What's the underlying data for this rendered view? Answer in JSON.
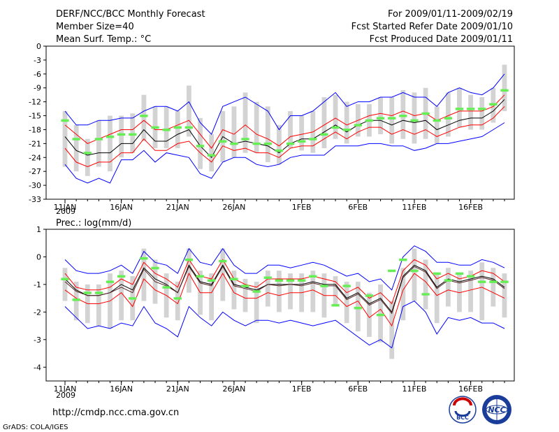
{
  "header": {
    "title": "DERF/NCC/BCC Monthly Forecast",
    "member_size": "Member Size=40",
    "for_period": "For 2009/01/11-2009/02/19",
    "fcst_started": "Fcst Started Refer Date 2009/01/10",
    "fcst_produced": "Fcst Produced Date 2009/01/11"
  },
  "footer": {
    "url": "http://cmdp.ncc.cma.gov.cn",
    "credit": "GrADS: COLA/IGES",
    "logo_bcc": "BCC",
    "logo_ncc": "NCC"
  },
  "colors": {
    "envelope": "#0000ff",
    "spread": "#ff0000",
    "mean": "#000000",
    "observed": "#66ee55",
    "box": "#d3d3d3"
  },
  "chart_data": [
    {
      "type": "line",
      "ylabel": "Mean Surf. Temp.: °C",
      "ylim": [
        -33,
        0
      ],
      "yticks": [
        0,
        -3,
        -6,
        -9,
        -12,
        -15,
        -18,
        -21,
        -24,
        -27,
        -30,
        -33
      ],
      "xlim": [
        0,
        39
      ],
      "xticks": [
        {
          "x": 0,
          "label": "11JAN"
        },
        {
          "x": 5,
          "label": "16JAN"
        },
        {
          "x": 10,
          "label": "21JAN"
        },
        {
          "x": 15,
          "label": "26JAN"
        },
        {
          "x": 21,
          "label": "1FEB"
        },
        {
          "x": 26,
          "label": "6FEB"
        },
        {
          "x": 31,
          "label": "11FEB"
        },
        {
          "x": 36,
          "label": "16FEB"
        }
      ],
      "year_label": "2009",
      "series": [
        {
          "name": "ensemble max",
          "color": "#0000ff",
          "values": [
            -14,
            -17,
            -17,
            -16,
            -16,
            -15.5,
            -15.5,
            -14,
            -13,
            -13,
            -14,
            -12,
            -16.5,
            -19,
            -13,
            -12,
            -11,
            -12.5,
            -14,
            -18,
            -15,
            -15,
            -14,
            -12,
            -10,
            -13,
            -12,
            -12,
            -11,
            -11,
            -10,
            -11,
            -11,
            -13,
            -10,
            -9,
            -10,
            -10.5,
            -9,
            -6
          ]
        },
        {
          "name": "ensemble upper",
          "color": "#ff0000",
          "values": [
            -17,
            -19,
            -21,
            -20,
            -19,
            -18,
            -18,
            -16,
            -18,
            -18,
            -17,
            -16,
            -19,
            -22,
            -18,
            -19,
            -17,
            -19,
            -20,
            -21.5,
            -19.5,
            -19,
            -18.5,
            -17,
            -15.5,
            -17,
            -16,
            -15,
            -14.5,
            -15,
            -14,
            -15,
            -14.5,
            -16,
            -15,
            -14,
            -14,
            -14,
            -13,
            -10.5
          ]
        },
        {
          "name": "ensemble mean",
          "color": "#000000",
          "values": [
            -19.5,
            -22.5,
            -23.5,
            -23,
            -23,
            -21,
            -21,
            -18,
            -20.5,
            -20.5,
            -19,
            -18,
            -21.5,
            -24,
            -19.5,
            -21,
            -20.5,
            -21,
            -21.5,
            -23,
            -21,
            -20,
            -20,
            -18.5,
            -17,
            -18.5,
            -17,
            -16,
            -16,
            -17,
            -16,
            -16.5,
            -16,
            -18,
            -17,
            -16,
            -15.5,
            -15.5,
            -14,
            -11.5
          ]
        },
        {
          "name": "ensemble lower",
          "color": "#ff0000",
          "values": [
            -22,
            -25,
            -26,
            -25,
            -25,
            -23,
            -23,
            -20,
            -22.5,
            -22.5,
            -21,
            -20.5,
            -23,
            -25,
            -21.5,
            -22.5,
            -22,
            -23,
            -23,
            -24,
            -22,
            -21.5,
            -21.5,
            -20,
            -18.5,
            -20,
            -18.5,
            -17.5,
            -17.5,
            -19,
            -18,
            -19,
            -18,
            -19.5,
            -18.5,
            -17.5,
            -17,
            -17,
            -15.5,
            -13
          ]
        },
        {
          "name": "ensemble min",
          "color": "#0000ff",
          "values": [
            -25.5,
            -28.5,
            -29.5,
            -28.5,
            -29.5,
            -24.5,
            -24.5,
            -22.5,
            -25,
            -23,
            -23.5,
            -24,
            -27.5,
            -28.5,
            -25,
            -24,
            -24,
            -25.5,
            -26,
            -25.5,
            -24,
            -23.5,
            -23.5,
            -23.5,
            -21.5,
            -21.5,
            -21.5,
            -21,
            -21,
            -21.5,
            -21.5,
            -22.5,
            -22,
            -21,
            -21,
            -20.5,
            -20,
            -19.5,
            -18,
            -16.5
          ]
        }
      ],
      "boxes": [
        [
          -14,
          -26
        ],
        [
          -17,
          -27
        ],
        [
          -20,
          -28
        ],
        [
          -16,
          -26
        ],
        [
          -15,
          -27
        ],
        [
          -15,
          -24
        ],
        [
          -14.5,
          -23
        ],
        [
          -10.5,
          -20.5
        ],
        [
          -13,
          -22
        ],
        [
          -13,
          -22
        ],
        [
          -14,
          -22
        ],
        [
          -8.5,
          -19.5
        ],
        [
          -15.5,
          -26.5
        ],
        [
          -19,
          -27
        ],
        [
          -14,
          -25
        ],
        [
          -13,
          -24
        ],
        [
          -10,
          -23
        ],
        [
          -12,
          -23
        ],
        [
          -13,
          -25
        ],
        [
          -17,
          -25.5
        ],
        [
          -14,
          -22
        ],
        [
          -15,
          -22.5
        ],
        [
          -14,
          -23
        ],
        [
          -11,
          -22
        ],
        [
          -10.5,
          -20
        ],
        [
          -12,
          -21
        ],
        [
          -12.5,
          -19.5
        ],
        [
          -12.5,
          -19.5
        ],
        [
          -11,
          -19
        ],
        [
          -11,
          -21
        ],
        [
          -9.5,
          -20
        ],
        [
          -10,
          -21
        ],
        [
          -9,
          -20
        ],
        [
          -13,
          -21
        ],
        [
          -10,
          -19.5
        ],
        [
          -9,
          -17.5
        ],
        [
          -10.5,
          -18
        ],
        [
          -11,
          -18
        ],
        [
          -9,
          -16.5
        ],
        [
          -4,
          -14
        ]
      ],
      "observed": [
        -16,
        -20,
        -23,
        -20,
        -19.5,
        -19,
        -19,
        -15,
        -17.5,
        -18,
        -17.5,
        -17.5,
        -21.5,
        -23.5,
        -20.5,
        -21,
        -20,
        -21,
        -21,
        -22.5,
        -21,
        -20.5,
        -20,
        -19,
        -17.5,
        -18,
        -17,
        -16,
        -15.5,
        -15.5,
        -15,
        -16,
        -14.5,
        -16,
        -15.5,
        -13.5,
        -13.5,
        -13.5,
        -12.5,
        -9.5
      ]
    },
    {
      "type": "line",
      "ylabel": "Prec.: log(mm/d)",
      "ylim": [
        -4.5,
        1
      ],
      "yticks": [
        1,
        0,
        -1,
        -2,
        -3,
        -4
      ],
      "xlim": [
        0,
        39
      ],
      "xticks": [
        {
          "x": 0,
          "label": "11JAN"
        },
        {
          "x": 5,
          "label": "16JAN"
        },
        {
          "x": 10,
          "label": "21JAN"
        },
        {
          "x": 15,
          "label": "26JAN"
        },
        {
          "x": 21,
          "label": "1FEB"
        },
        {
          "x": 26,
          "label": "6FEB"
        },
        {
          "x": 31,
          "label": "11FEB"
        },
        {
          "x": 36,
          "label": "16FEB"
        }
      ],
      "year_label": "2009",
      "series": [
        {
          "name": "ensemble max",
          "color": "#0000ff",
          "values": [
            -0.1,
            -0.5,
            -0.6,
            -0.6,
            -0.5,
            -0.3,
            -0.6,
            0.2,
            -0.2,
            -0.3,
            -0.6,
            0.3,
            -0.2,
            -0.3,
            0.3,
            -0.3,
            -0.6,
            -0.6,
            -0.3,
            -0.3,
            -0.4,
            -0.3,
            -0.2,
            -0.3,
            -0.5,
            -0.7,
            -0.6,
            -0.9,
            -0.8,
            -1.2,
            0.0,
            0.4,
            0.2,
            -0.2,
            -0.2,
            -0.3,
            -0.3,
            -0.1,
            -0.2,
            -0.4
          ]
        },
        {
          "name": "ensemble upper",
          "color": "#ff0000",
          "values": [
            -0.6,
            -1.1,
            -1.2,
            -1.2,
            -1.1,
            -0.8,
            -1.0,
            -0.2,
            -0.6,
            -0.8,
            -1.1,
            -0.1,
            -0.7,
            -0.8,
            -0.1,
            -0.8,
            -1.0,
            -1.1,
            -0.8,
            -0.8,
            -0.8,
            -0.8,
            -0.7,
            -0.8,
            -0.9,
            -1.3,
            -1.1,
            -1.5,
            -1.3,
            -1.7,
            -0.5,
            -0.1,
            -0.3,
            -0.8,
            -0.6,
            -0.8,
            -0.7,
            -0.5,
            -0.6,
            -0.9
          ]
        },
        {
          "name": "ensemble mean",
          "color": "#000000",
          "values": [
            -0.8,
            -1.2,
            -1.4,
            -1.4,
            -1.3,
            -1.0,
            -1.2,
            -0.4,
            -0.8,
            -1.0,
            -1.3,
            -0.3,
            -0.9,
            -1.0,
            -0.3,
            -1.0,
            -1.1,
            -1.2,
            -1.0,
            -1.0,
            -1.0,
            -1.0,
            -0.9,
            -1.0,
            -1.0,
            -1.5,
            -1.3,
            -1.7,
            -1.5,
            -2.0,
            -0.7,
            -0.3,
            -0.5,
            -1.1,
            -0.8,
            -0.9,
            -0.8,
            -0.7,
            -0.8,
            -1.1
          ]
        },
        {
          "name": "ensemble lower",
          "color": "#ff0000",
          "values": [
            -1.2,
            -1.5,
            -1.7,
            -1.7,
            -1.6,
            -1.3,
            -1.8,
            -0.8,
            -1.2,
            -1.4,
            -1.7,
            -0.6,
            -1.3,
            -1.3,
            -0.6,
            -1.3,
            -1.5,
            -1.5,
            -1.3,
            -1.4,
            -1.3,
            -1.3,
            -1.2,
            -1.4,
            -1.4,
            -1.8,
            -1.6,
            -2.2,
            -1.9,
            -2.5,
            -1.2,
            -0.6,
            -0.9,
            -1.4,
            -1.2,
            -1.3,
            -1.2,
            -1.1,
            -1.3,
            -1.5
          ]
        },
        {
          "name": "ensemble min",
          "color": "#0000ff",
          "values": [
            -1.8,
            -2.2,
            -2.6,
            -2.5,
            -2.6,
            -2.4,
            -2.5,
            -1.8,
            -2.4,
            -2.6,
            -2.9,
            -1.8,
            -2.2,
            -2.5,
            -2.0,
            -2.3,
            -2.5,
            -2.3,
            -2.3,
            -2.4,
            -2.3,
            -2.4,
            -2.5,
            -2.4,
            -2.3,
            -2.6,
            -2.9,
            -3.2,
            -3.0,
            -3.3,
            -1.8,
            -1.6,
            -2.0,
            -2.8,
            -2.2,
            -2.3,
            -2.2,
            -2.4,
            -2.4,
            -2.6
          ]
        },
        {
          "name": "ensemble mean (dark)",
          "color": "#552222",
          "values": [
            -0.9,
            -1.25,
            -1.4,
            -1.4,
            -1.3,
            -1.1,
            -1.3,
            -0.45,
            -0.9,
            -1.05,
            -1.3,
            -0.35,
            -0.95,
            -1.05,
            -0.35,
            -1.05,
            -1.15,
            -1.25,
            -1.0,
            -1.05,
            -1.0,
            -1.05,
            -0.95,
            -1.05,
            -1.05,
            -1.55,
            -1.35,
            -1.75,
            -1.55,
            -2.05,
            -0.75,
            -0.35,
            -0.55,
            -1.15,
            -0.85,
            -0.95,
            -0.85,
            -0.75,
            -0.85,
            -1.15
          ]
        }
      ],
      "boxes": [
        [
          -0.4,
          -1.6
        ],
        [
          -0.9,
          -2.3
        ],
        [
          -1.0,
          -2.4
        ],
        [
          -1.0,
          -2.5
        ],
        [
          -0.6,
          -2.6
        ],
        [
          -0.5,
          -2.3
        ],
        [
          -0.7,
          -2.3
        ],
        [
          0.3,
          -1.6
        ],
        [
          -0.1,
          -1.7
        ],
        [
          -0.6,
          -2.2
        ],
        [
          -0.9,
          -2.3
        ],
        [
          0.3,
          -1.3
        ],
        [
          -0.5,
          -2.1
        ],
        [
          -0.6,
          -2.3
        ],
        [
          0.3,
          -1.6
        ],
        [
          -0.5,
          -1.9
        ],
        [
          -0.8,
          -2.0
        ],
        [
          -0.9,
          -2.4
        ],
        [
          -0.5,
          -1.8
        ],
        [
          -0.5,
          -2.0
        ],
        [
          -0.6,
          -1.9
        ],
        [
          -0.6,
          -2.0
        ],
        [
          -0.5,
          -2.0
        ],
        [
          -0.6,
          -2.2
        ],
        [
          -0.7,
          -1.8
        ],
        [
          -0.9,
          -2.4
        ],
        [
          -0.9,
          -2.7
        ],
        [
          -1.3,
          -2.9
        ],
        [
          -1.0,
          -3.1
        ],
        [
          -1.6,
          -3.7
        ],
        [
          -0.4,
          -2.3
        ],
        [
          0.3,
          -1.6
        ],
        [
          -0.1,
          -1.9
        ],
        [
          -0.6,
          -2.4
        ],
        [
          -0.4,
          -1.8
        ],
        [
          -0.6,
          -2.0
        ],
        [
          -0.5,
          -2.0
        ],
        [
          -0.2,
          -2.3
        ],
        [
          -0.4,
          -1.8
        ],
        [
          -0.6,
          -2.2
        ]
      ],
      "observed": [
        -0.8,
        -1.55,
        -1.3,
        -1.3,
        -0.9,
        -0.7,
        -1.5,
        -0.05,
        -0.4,
        -1.1,
        -1.5,
        -0.1,
        -0.7,
        -0.85,
        -0.15,
        -0.8,
        -1.05,
        -1.25,
        -0.75,
        -0.85,
        -0.85,
        -0.85,
        -0.7,
        -1.05,
        -1.75,
        -1.05,
        -1.85,
        -1.4,
        -2.1,
        -0.5,
        -0.1,
        -0.5,
        -1.35,
        -0.6,
        -0.85,
        -0.6,
        -0.7,
        -0.9,
        -0.9,
        -0.9
      ]
    }
  ]
}
